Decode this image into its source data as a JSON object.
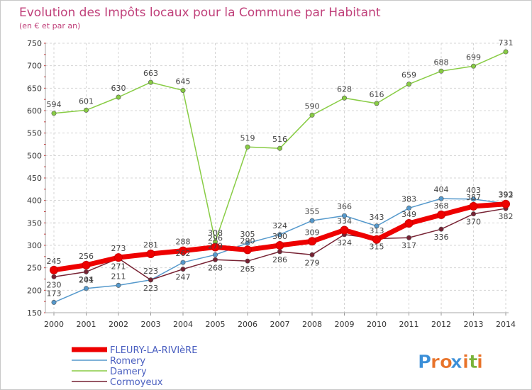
{
  "chart_data": {
    "type": "line",
    "title": "Evolution des Impôts locaux pour la Commune par Habitant",
    "subtitle": "(en € et par an)",
    "x": [
      "2000",
      "2001",
      "2002",
      "2003",
      "2004",
      "2005",
      "2006",
      "2007",
      "2008",
      "2009",
      "2010",
      "2011",
      "2012",
      "2013",
      "2014"
    ],
    "ylim": [
      150,
      750
    ],
    "yticks": [
      150,
      200,
      250,
      300,
      350,
      400,
      450,
      500,
      550,
      600,
      650,
      700,
      750
    ],
    "grid": true,
    "series": [
      {
        "name": "FLEURY-LA-RIVIèRE",
        "color": "#ee0000",
        "values": [
          245,
          256,
          273,
          281,
          288,
          296,
          290,
          300,
          309,
          334,
          313,
          349,
          368,
          387,
          392
        ]
      },
      {
        "name": "Romery",
        "color": "#5599cc",
        "values": [
          173,
          204,
          211,
          223,
          262,
          279,
          305,
          324,
          355,
          366,
          343,
          383,
          404,
          403,
          393
        ]
      },
      {
        "name": "Damery",
        "color": "#88cc44",
        "values": [
          594,
          601,
          630,
          663,
          645,
          308,
          519,
          516,
          590,
          628,
          616,
          659,
          688,
          699,
          731
        ]
      },
      {
        "name": "Cormoyeux",
        "color": "#772233",
        "values": [
          230,
          241,
          271,
          223,
          247,
          268,
          265,
          286,
          279,
          324,
          315,
          317,
          336,
          370,
          382
        ]
      }
    ]
  },
  "legend": {
    "items": [
      "FLEURY-LA-RIVIèRE",
      "Romery",
      "Damery",
      "Cormoyeux"
    ]
  },
  "brand": {
    "letters": [
      "P",
      "r",
      "o",
      "x",
      "i",
      "t",
      "i"
    ],
    "colors": [
      "#3b8fd8",
      "#e8732a",
      "#e8732a",
      "#3b8fd8",
      "#e8732a",
      "#7ab33a",
      "#e8732a"
    ]
  }
}
